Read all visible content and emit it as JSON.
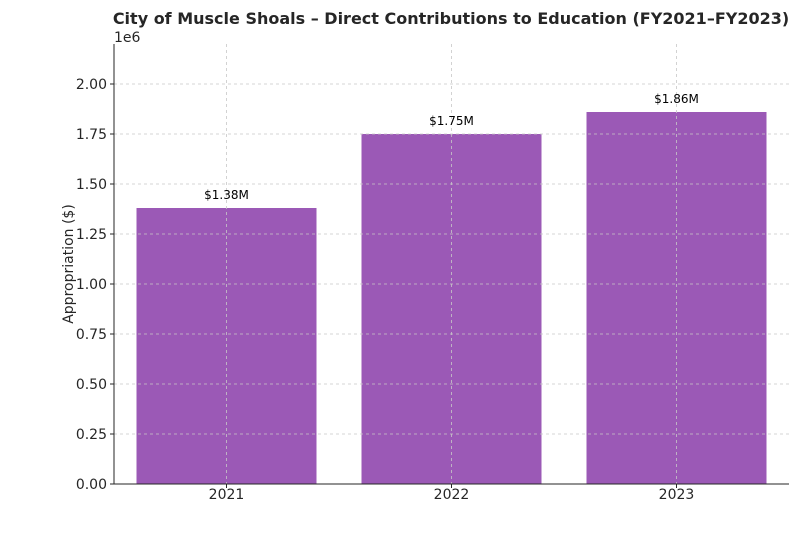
{
  "chart_data": {
    "type": "bar",
    "title": "City of Muscle Shoals – Direct Contributions to Education (FY2021–FY2023)",
    "xlabel": "",
    "ylabel": "Appropriation ($)",
    "scale_label": "1e6",
    "categories": [
      "2021",
      "2022",
      "2023"
    ],
    "values": [
      1380000,
      1750000,
      1860000
    ],
    "data_labels": [
      "$1.38M",
      "$1.75M",
      "$1.86M"
    ],
    "ylim": [
      0,
      2200000
    ],
    "yticks": [
      0,
      250000,
      500000,
      750000,
      1000000,
      1250000,
      1500000,
      1750000,
      2000000
    ],
    "ytick_labels": [
      "0.00",
      "0.25",
      "0.50",
      "0.75",
      "1.00",
      "1.25",
      "1.50",
      "1.75",
      "2.00"
    ],
    "grid": true,
    "bar_color": "#9b59b6"
  }
}
